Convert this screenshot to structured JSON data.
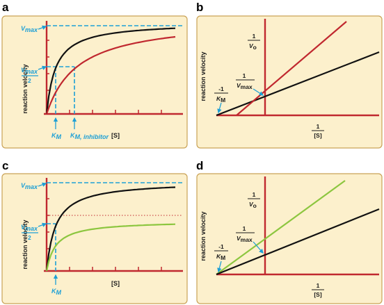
{
  "panels": [
    {
      "letter": "a",
      "ylabel": "reaction velocity",
      "xlabel": "[S]",
      "vmax_label": "V",
      "vmax_sub": "max",
      "half_label": "V",
      "half_sub": "max",
      "half_den": "2",
      "km_label": "K",
      "km_sub": "M",
      "kmi_label": "K",
      "kmi_sub": "M, inhibitor"
    },
    {
      "letter": "b",
      "ylabel": "reaction velocity",
      "x_num": "1",
      "x_den": "[S]",
      "y_num": "1",
      "y_den": "V",
      "y_den_sub": "o",
      "vmax_num": "1",
      "vmax_den": "V",
      "vmax_sub": "max",
      "km_num": "-1",
      "km_den": "K",
      "km_sub": "M"
    },
    {
      "letter": "c",
      "ylabel": "reaction velocity",
      "xlabel": "[S]",
      "vmax_label": "V",
      "vmax_sub": "max",
      "half_label": "V",
      "half_sub": "max",
      "half_den": "2",
      "km_label": "K",
      "km_sub": "M"
    },
    {
      "letter": "d",
      "ylabel": "reaction velocity",
      "x_num": "1",
      "x_den": "[S]",
      "y_num": "1",
      "y_den": "V",
      "y_den_sub": "o",
      "vmax_num": "1",
      "vmax_den": "V",
      "vmax_sub": "max",
      "km_num": "-1",
      "km_den": "K",
      "km_sub": "M"
    }
  ],
  "colors": {
    "panel_bg": "#fcf0cc",
    "panel_border": "#c9a256",
    "axis": "#c0282f",
    "uninhibited": "#111111",
    "competitive": "#c0282f",
    "noncompetitive": "#8cc63f",
    "guide": "#1c9fd6"
  }
}
